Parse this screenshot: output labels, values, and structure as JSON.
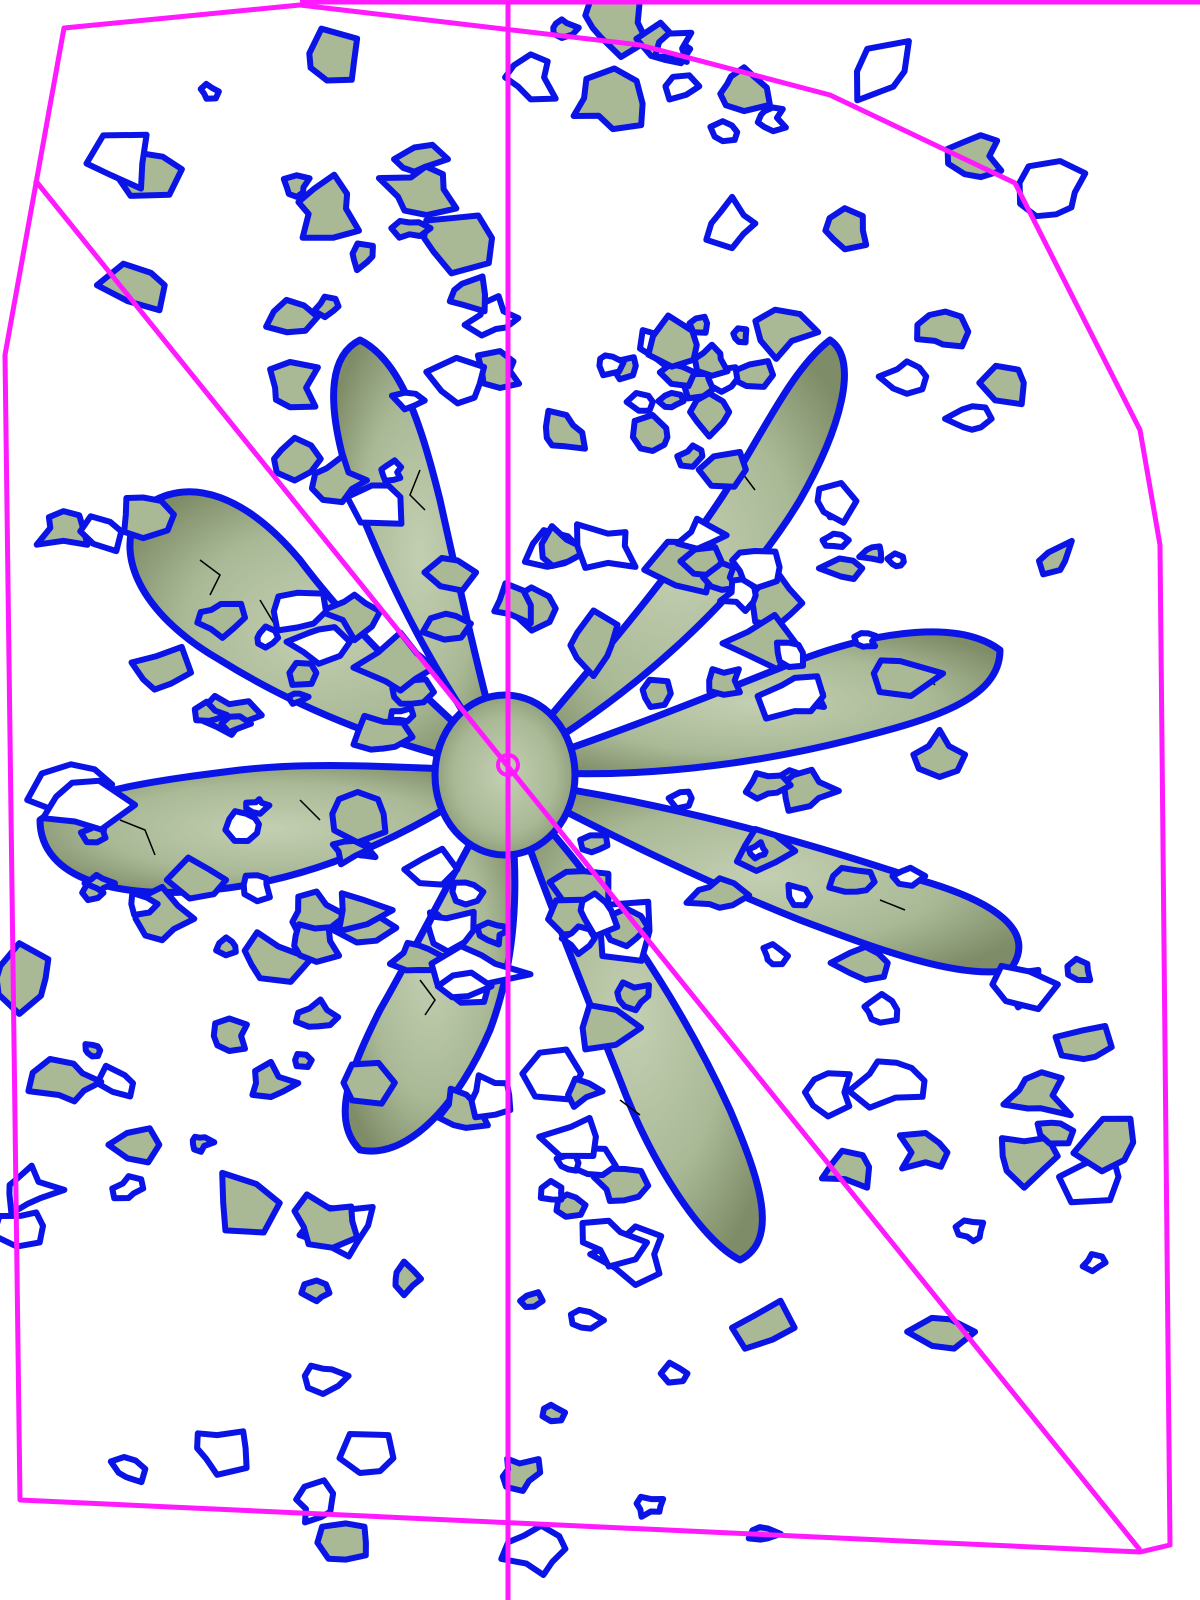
{
  "image": {
    "subject": "rosette-plant-top-view",
    "background_color": "#ffffff",
    "leaf_colors": [
      "#a9b996",
      "#8c9a78",
      "#c3cfb2",
      "#6f7b5a"
    ],
    "contour_color": "#0a14e6",
    "inner_contour_color": "#000000",
    "hull_color": "#ff1aff",
    "center_marker_color": "#ff1aff"
  }
}
